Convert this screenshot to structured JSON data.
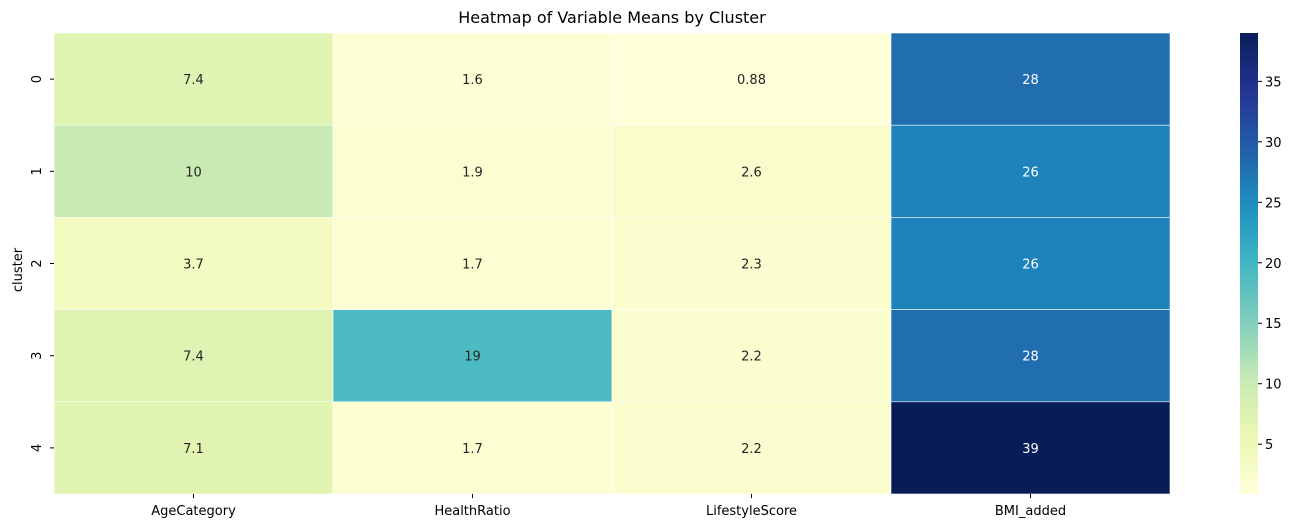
{
  "chart_data": {
    "type": "heatmap",
    "title": "Heatmap of Variable Means by Cluster",
    "xlabel": "",
    "ylabel": "cluster",
    "x_categories": [
      "AgeCategory",
      "HealthRatio",
      "LifestyleScore",
      "BMI_added"
    ],
    "y_categories": [
      "0",
      "1",
      "2",
      "3",
      "4"
    ],
    "values": [
      [
        7.4,
        1.6,
        0.88,
        28
      ],
      [
        10,
        1.9,
        2.6,
        26
      ],
      [
        3.7,
        1.7,
        2.3,
        26
      ],
      [
        7.4,
        19,
        2.2,
        28
      ],
      [
        7.1,
        1.7,
        2.2,
        39
      ]
    ],
    "annotations": [
      [
        "7.4",
        "1.6",
        "0.88",
        "28"
      ],
      [
        "10",
        "1.9",
        "2.6",
        "26"
      ],
      [
        "3.7",
        "1.7",
        "2.3",
        "26"
      ],
      [
        "7.4",
        "19",
        "2.2",
        "28"
      ],
      [
        "7.1",
        "1.7",
        "2.2",
        "39"
      ]
    ],
    "colormap": "YlGnBu",
    "vmin": 0.88,
    "vmax": 39,
    "colorbar_ticks": [
      5,
      10,
      15,
      20,
      25,
      30,
      35
    ],
    "colorbar_tick_labels": [
      "5",
      "10",
      "15",
      "20",
      "25",
      "30",
      "35"
    ],
    "cell_border_color": "#ffffff"
  }
}
